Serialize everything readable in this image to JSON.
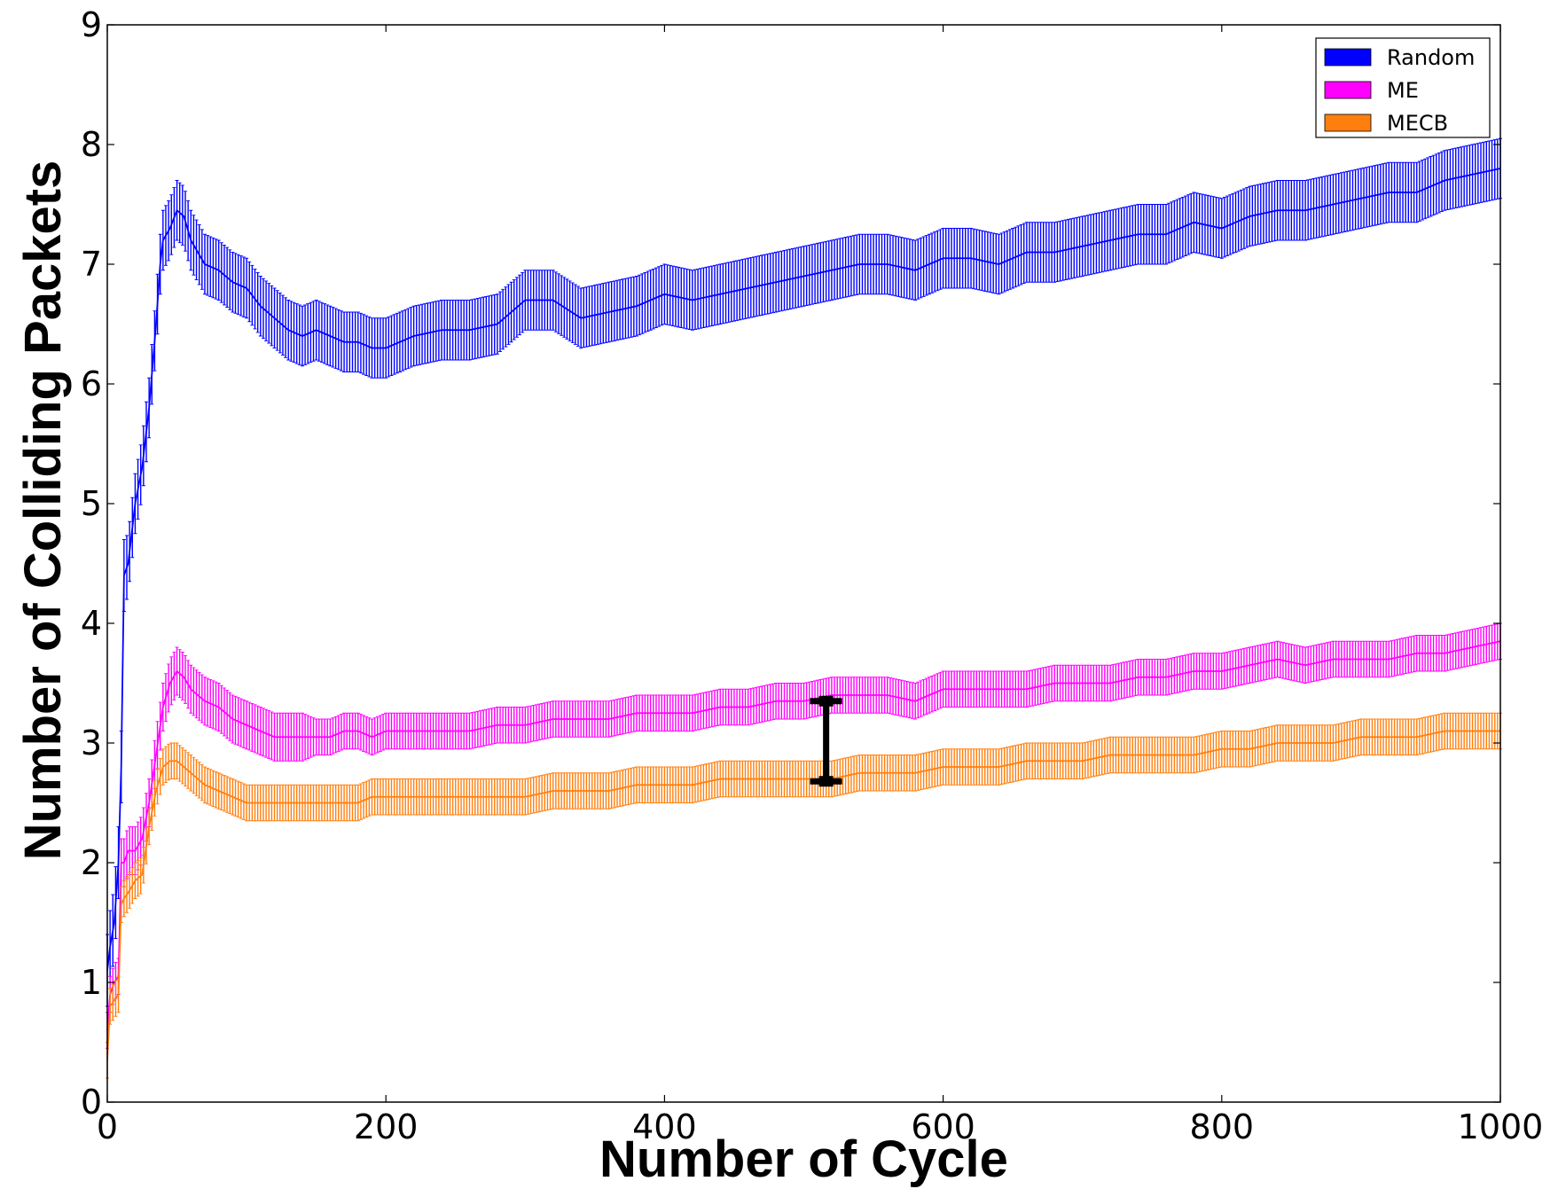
{
  "chart_data": {
    "type": "line",
    "xlabel": "Number of Cycle",
    "ylabel": "Number of Colliding Packets",
    "xlim": [
      0,
      1000
    ],
    "ylim": [
      0,
      9
    ],
    "x_ticks": [
      0,
      200,
      400,
      600,
      800,
      1000
    ],
    "y_ticks": [
      0,
      1,
      2,
      3,
      4,
      5,
      6,
      7,
      8,
      9
    ],
    "grid": false,
    "legend_position": "top-right",
    "series": [
      {
        "name": "Random",
        "color": "#0000ff",
        "x": [
          0,
          2,
          5,
          8,
          10,
          12,
          15,
          20,
          25,
          30,
          35,
          38,
          40,
          45,
          50,
          55,
          60,
          70,
          80,
          90,
          100,
          110,
          120,
          130,
          140,
          150,
          160,
          170,
          180,
          190,
          200,
          220,
          240,
          260,
          280,
          300,
          320,
          340,
          360,
          380,
          400,
          420,
          440,
          460,
          480,
          500,
          520,
          540,
          560,
          580,
          600,
          620,
          640,
          660,
          680,
          700,
          720,
          740,
          760,
          780,
          800,
          820,
          840,
          860,
          880,
          900,
          920,
          940,
          960,
          980,
          1000
        ],
        "y": [
          1.1,
          1.3,
          1.5,
          2.0,
          2.8,
          4.4,
          4.5,
          5.0,
          5.3,
          5.8,
          6.5,
          7.0,
          7.2,
          7.3,
          7.45,
          7.4,
          7.2,
          7.0,
          6.95,
          6.85,
          6.8,
          6.65,
          6.55,
          6.45,
          6.4,
          6.45,
          6.4,
          6.35,
          6.35,
          6.3,
          6.3,
          6.4,
          6.45,
          6.45,
          6.5,
          6.7,
          6.7,
          6.55,
          6.6,
          6.65,
          6.75,
          6.7,
          6.75,
          6.8,
          6.85,
          6.9,
          6.95,
          7.0,
          7.0,
          6.95,
          7.05,
          7.05,
          7.0,
          7.1,
          7.1,
          7.15,
          7.2,
          7.25,
          7.25,
          7.35,
          7.3,
          7.4,
          7.45,
          7.45,
          7.5,
          7.55,
          7.6,
          7.6,
          7.7,
          7.75,
          7.8
        ],
        "error": [
          0.3,
          0.3,
          0.3,
          0.3,
          0.3,
          0.3,
          0.25,
          0.25,
          0.25,
          0.25,
          0.25,
          0.25,
          0.25,
          0.25,
          0.25,
          0.25,
          0.25,
          0.25,
          0.25,
          0.25,
          0.25,
          0.25,
          0.25,
          0.25,
          0.25,
          0.25,
          0.25,
          0.25,
          0.25,
          0.25,
          0.25,
          0.25,
          0.25,
          0.25,
          0.25,
          0.25,
          0.25,
          0.25,
          0.25,
          0.25,
          0.25,
          0.25,
          0.25,
          0.25,
          0.25,
          0.25,
          0.25,
          0.25,
          0.25,
          0.25,
          0.25,
          0.25,
          0.25,
          0.25,
          0.25,
          0.25,
          0.25,
          0.25,
          0.25,
          0.25,
          0.25,
          0.25,
          0.25,
          0.25,
          0.25,
          0.25,
          0.25,
          0.25,
          0.25,
          0.25,
          0.25
        ]
      },
      {
        "name": "ME",
        "color": "#ff00ff",
        "x": [
          0,
          2,
          5,
          8,
          10,
          12,
          15,
          20,
          25,
          30,
          35,
          40,
          45,
          50,
          55,
          60,
          70,
          80,
          90,
          100,
          110,
          120,
          130,
          140,
          150,
          160,
          170,
          180,
          190,
          200,
          220,
          240,
          260,
          280,
          300,
          320,
          340,
          360,
          380,
          400,
          420,
          440,
          460,
          480,
          500,
          520,
          540,
          560,
          580,
          600,
          620,
          640,
          660,
          680,
          700,
          720,
          740,
          760,
          780,
          800,
          820,
          840,
          860,
          880,
          900,
          920,
          940,
          960,
          980,
          1000
        ],
        "y": [
          0.6,
          0.9,
          1.0,
          1.05,
          2.0,
          2.0,
          2.1,
          2.1,
          2.2,
          2.5,
          2.9,
          3.3,
          3.5,
          3.6,
          3.55,
          3.45,
          3.35,
          3.3,
          3.2,
          3.15,
          3.1,
          3.05,
          3.05,
          3.05,
          3.05,
          3.05,
          3.1,
          3.1,
          3.05,
          3.1,
          3.1,
          3.1,
          3.1,
          3.15,
          3.15,
          3.2,
          3.2,
          3.2,
          3.25,
          3.25,
          3.25,
          3.3,
          3.3,
          3.35,
          3.35,
          3.4,
          3.4,
          3.4,
          3.35,
          3.45,
          3.45,
          3.45,
          3.45,
          3.5,
          3.5,
          3.5,
          3.55,
          3.55,
          3.6,
          3.6,
          3.65,
          3.7,
          3.65,
          3.7,
          3.7,
          3.7,
          3.75,
          3.75,
          3.8,
          3.85
        ],
        "error": [
          0.15,
          0.15,
          0.15,
          0.15,
          0.2,
          0.2,
          0.2,
          0.2,
          0.2,
          0.2,
          0.2,
          0.2,
          0.2,
          0.2,
          0.2,
          0.2,
          0.2,
          0.2,
          0.2,
          0.2,
          0.2,
          0.2,
          0.2,
          0.2,
          0.15,
          0.15,
          0.15,
          0.15,
          0.15,
          0.15,
          0.15,
          0.15,
          0.15,
          0.15,
          0.15,
          0.15,
          0.15,
          0.15,
          0.15,
          0.15,
          0.15,
          0.15,
          0.15,
          0.15,
          0.15,
          0.15,
          0.15,
          0.15,
          0.15,
          0.15,
          0.15,
          0.15,
          0.15,
          0.15,
          0.15,
          0.15,
          0.15,
          0.15,
          0.15,
          0.15,
          0.15,
          0.15,
          0.15,
          0.15,
          0.15,
          0.15,
          0.15,
          0.15,
          0.15,
          0.15
        ]
      },
      {
        "name": "MECB",
        "color": "#ff7f0e",
        "x": [
          0,
          2,
          5,
          8,
          10,
          12,
          15,
          20,
          25,
          30,
          35,
          40,
          45,
          50,
          55,
          60,
          70,
          80,
          90,
          100,
          110,
          120,
          130,
          140,
          150,
          160,
          170,
          180,
          190,
          200,
          220,
          240,
          260,
          280,
          300,
          320,
          340,
          360,
          380,
          400,
          420,
          440,
          460,
          480,
          500,
          520,
          540,
          560,
          580,
          600,
          620,
          640,
          660,
          680,
          700,
          720,
          740,
          760,
          780,
          800,
          820,
          840,
          860,
          880,
          900,
          920,
          940,
          960,
          980,
          1000
        ],
        "y": [
          0.35,
          0.8,
          0.85,
          0.9,
          1.65,
          1.7,
          1.75,
          1.85,
          1.9,
          2.3,
          2.6,
          2.8,
          2.85,
          2.85,
          2.8,
          2.75,
          2.65,
          2.6,
          2.55,
          2.5,
          2.5,
          2.5,
          2.5,
          2.5,
          2.5,
          2.5,
          2.5,
          2.5,
          2.55,
          2.55,
          2.55,
          2.55,
          2.55,
          2.55,
          2.55,
          2.6,
          2.6,
          2.6,
          2.65,
          2.65,
          2.65,
          2.7,
          2.7,
          2.7,
          2.7,
          2.7,
          2.75,
          2.75,
          2.75,
          2.8,
          2.8,
          2.8,
          2.85,
          2.85,
          2.85,
          2.9,
          2.9,
          2.9,
          2.9,
          2.95,
          2.95,
          3.0,
          3.0,
          3.0,
          3.05,
          3.05,
          3.05,
          3.1,
          3.1,
          3.1
        ],
        "error": [
          0.15,
          0.15,
          0.15,
          0.15,
          0.15,
          0.15,
          0.15,
          0.15,
          0.15,
          0.15,
          0.15,
          0.15,
          0.15,
          0.15,
          0.15,
          0.15,
          0.15,
          0.15,
          0.15,
          0.15,
          0.15,
          0.15,
          0.15,
          0.15,
          0.15,
          0.15,
          0.15,
          0.15,
          0.15,
          0.15,
          0.15,
          0.15,
          0.15,
          0.15,
          0.15,
          0.15,
          0.15,
          0.15,
          0.15,
          0.15,
          0.15,
          0.15,
          0.15,
          0.15,
          0.15,
          0.15,
          0.15,
          0.15,
          0.15,
          0.15,
          0.15,
          0.15,
          0.15,
          0.15,
          0.15,
          0.15,
          0.15,
          0.15,
          0.15,
          0.15,
          0.15,
          0.15,
          0.15,
          0.15,
          0.15,
          0.15,
          0.15,
          0.15,
          0.15,
          0.15
        ]
      }
    ],
    "annotations": [
      {
        "type": "interval-marker",
        "x": 516,
        "y_low": 2.68,
        "y_high": 3.35,
        "color": "#000000"
      }
    ]
  }
}
